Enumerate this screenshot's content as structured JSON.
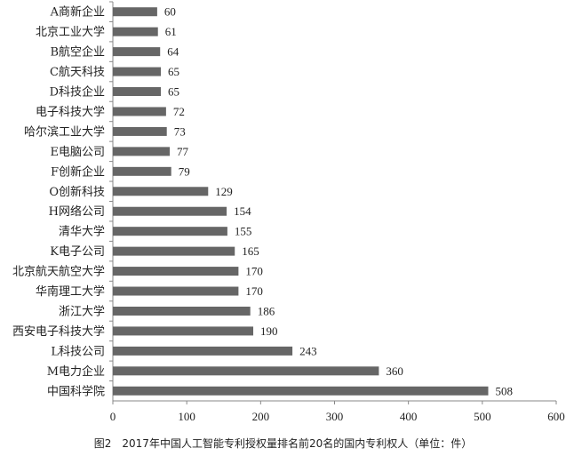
{
  "chart_data": {
    "type": "bar",
    "orientation": "horizontal",
    "categories": [
      "A商新企业",
      "北京工业大学",
      "B航空企业",
      "C航天科技",
      "D科技企业",
      "电子科技大学",
      "哈尔滨工业大学",
      "E电脑公司",
      "F创新企业",
      "O创新科技",
      "H网络公司",
      "清华大学",
      "K电子公司",
      "北京航天航空大学",
      "华南理工大学",
      "浙江大学",
      "西安电子科技大学",
      "L科技公司",
      "M电力企业",
      "中国科学院"
    ],
    "values": [
      60,
      61,
      64,
      65,
      65,
      72,
      73,
      77,
      79,
      129,
      154,
      155,
      165,
      170,
      170,
      186,
      190,
      243,
      360,
      508
    ],
    "xlim": [
      0,
      600
    ],
    "xticks": [
      "0",
      "100",
      "200",
      "300",
      "400",
      "500",
      "600"
    ],
    "grid": false,
    "bar_color": "#666666",
    "title": "图2　2017年中国人工智能专利授权量排名前20名的国内专利权人（单位：件）"
  }
}
